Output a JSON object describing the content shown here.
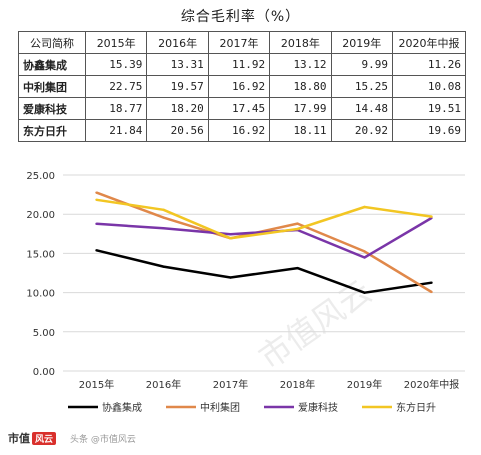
{
  "title": "综合毛利率（%）",
  "table": {
    "corner": "公司简称",
    "columns": [
      "2015年",
      "2016年",
      "2017年",
      "2018年",
      "2019年",
      "2020年中报"
    ],
    "rows": [
      {
        "name": "协鑫集成",
        "values": [
          "15.39",
          "13.31",
          "11.92",
          "13.12",
          "9.99",
          "11.26"
        ]
      },
      {
        "name": "中利集团",
        "values": [
          "22.75",
          "19.57",
          "16.92",
          "18.80",
          "15.25",
          "10.08"
        ]
      },
      {
        "name": "爱康科技",
        "values": [
          "18.77",
          "18.20",
          "17.45",
          "17.99",
          "14.48",
          "19.51"
        ]
      },
      {
        "name": "东方日升",
        "values": [
          "21.84",
          "20.56",
          "16.92",
          "18.11",
          "20.92",
          "19.69"
        ]
      }
    ]
  },
  "chart_data": {
    "type": "line",
    "categories": [
      "2015年",
      "2016年",
      "2017年",
      "2018年",
      "2019年",
      "2020年中报"
    ],
    "ylim": [
      0,
      25
    ],
    "yticks": [
      "0.00",
      "5.00",
      "10.00",
      "15.00",
      "20.00",
      "25.00"
    ],
    "ytick_values": [
      0,
      5,
      10,
      15,
      20,
      25
    ],
    "grid": true,
    "legend_position": "bottom",
    "series": [
      {
        "name": "协鑫集成",
        "color": "#000000",
        "values": [
          15.39,
          13.31,
          11.92,
          13.12,
          9.99,
          11.26
        ]
      },
      {
        "name": "中利集团",
        "color": "#e0884a",
        "values": [
          22.75,
          19.57,
          16.92,
          18.8,
          15.25,
          10.08
        ]
      },
      {
        "name": "爱康科技",
        "color": "#7a35a8",
        "values": [
          18.77,
          18.2,
          17.45,
          17.99,
          14.48,
          19.51
        ]
      },
      {
        "name": "东方日升",
        "color": "#f2c623",
        "values": [
          21.84,
          20.56,
          16.92,
          18.11,
          20.92,
          19.69
        ]
      }
    ]
  },
  "footer": {
    "brand": "市值",
    "badge": "风云",
    "note": "头条 @市值风云"
  },
  "watermark": "市值风云"
}
